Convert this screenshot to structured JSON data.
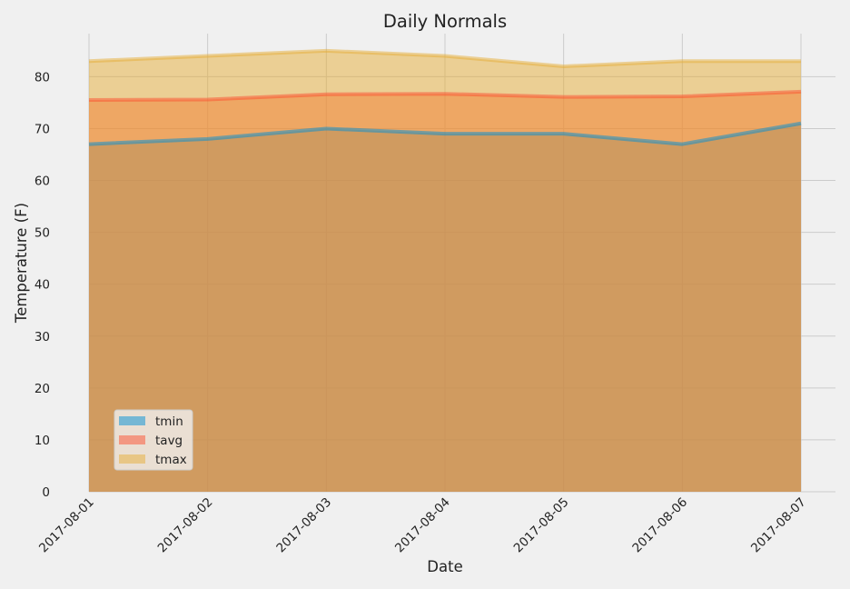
{
  "chart_data": {
    "type": "area",
    "title": "Daily Normals",
    "xlabel": "Date",
    "ylabel": "Temperature (F)",
    "x": [
      "2017-08-01",
      "2017-08-02",
      "2017-08-03",
      "2017-08-04",
      "2017-08-05",
      "2017-08-06",
      "2017-08-07"
    ],
    "ylim": [
      0,
      89
    ],
    "yticks": [
      0,
      10,
      20,
      30,
      40,
      50,
      60,
      70,
      80
    ],
    "grid": true,
    "stacked": false,
    "legend_position": "lower-left",
    "series": [
      {
        "name": "tmin",
        "values": [
          67,
          68,
          70,
          69,
          69,
          67,
          71
        ],
        "color": "#008fd5"
      },
      {
        "name": "tavg",
        "values": [
          75.5,
          75.6,
          76.6,
          76.7,
          76.1,
          76.2,
          77.1
        ],
        "color": "#fc4f30"
      },
      {
        "name": "tmax",
        "values": [
          83,
          84,
          85,
          84,
          82,
          83,
          83
        ],
        "color": "#e5ae38"
      }
    ]
  }
}
